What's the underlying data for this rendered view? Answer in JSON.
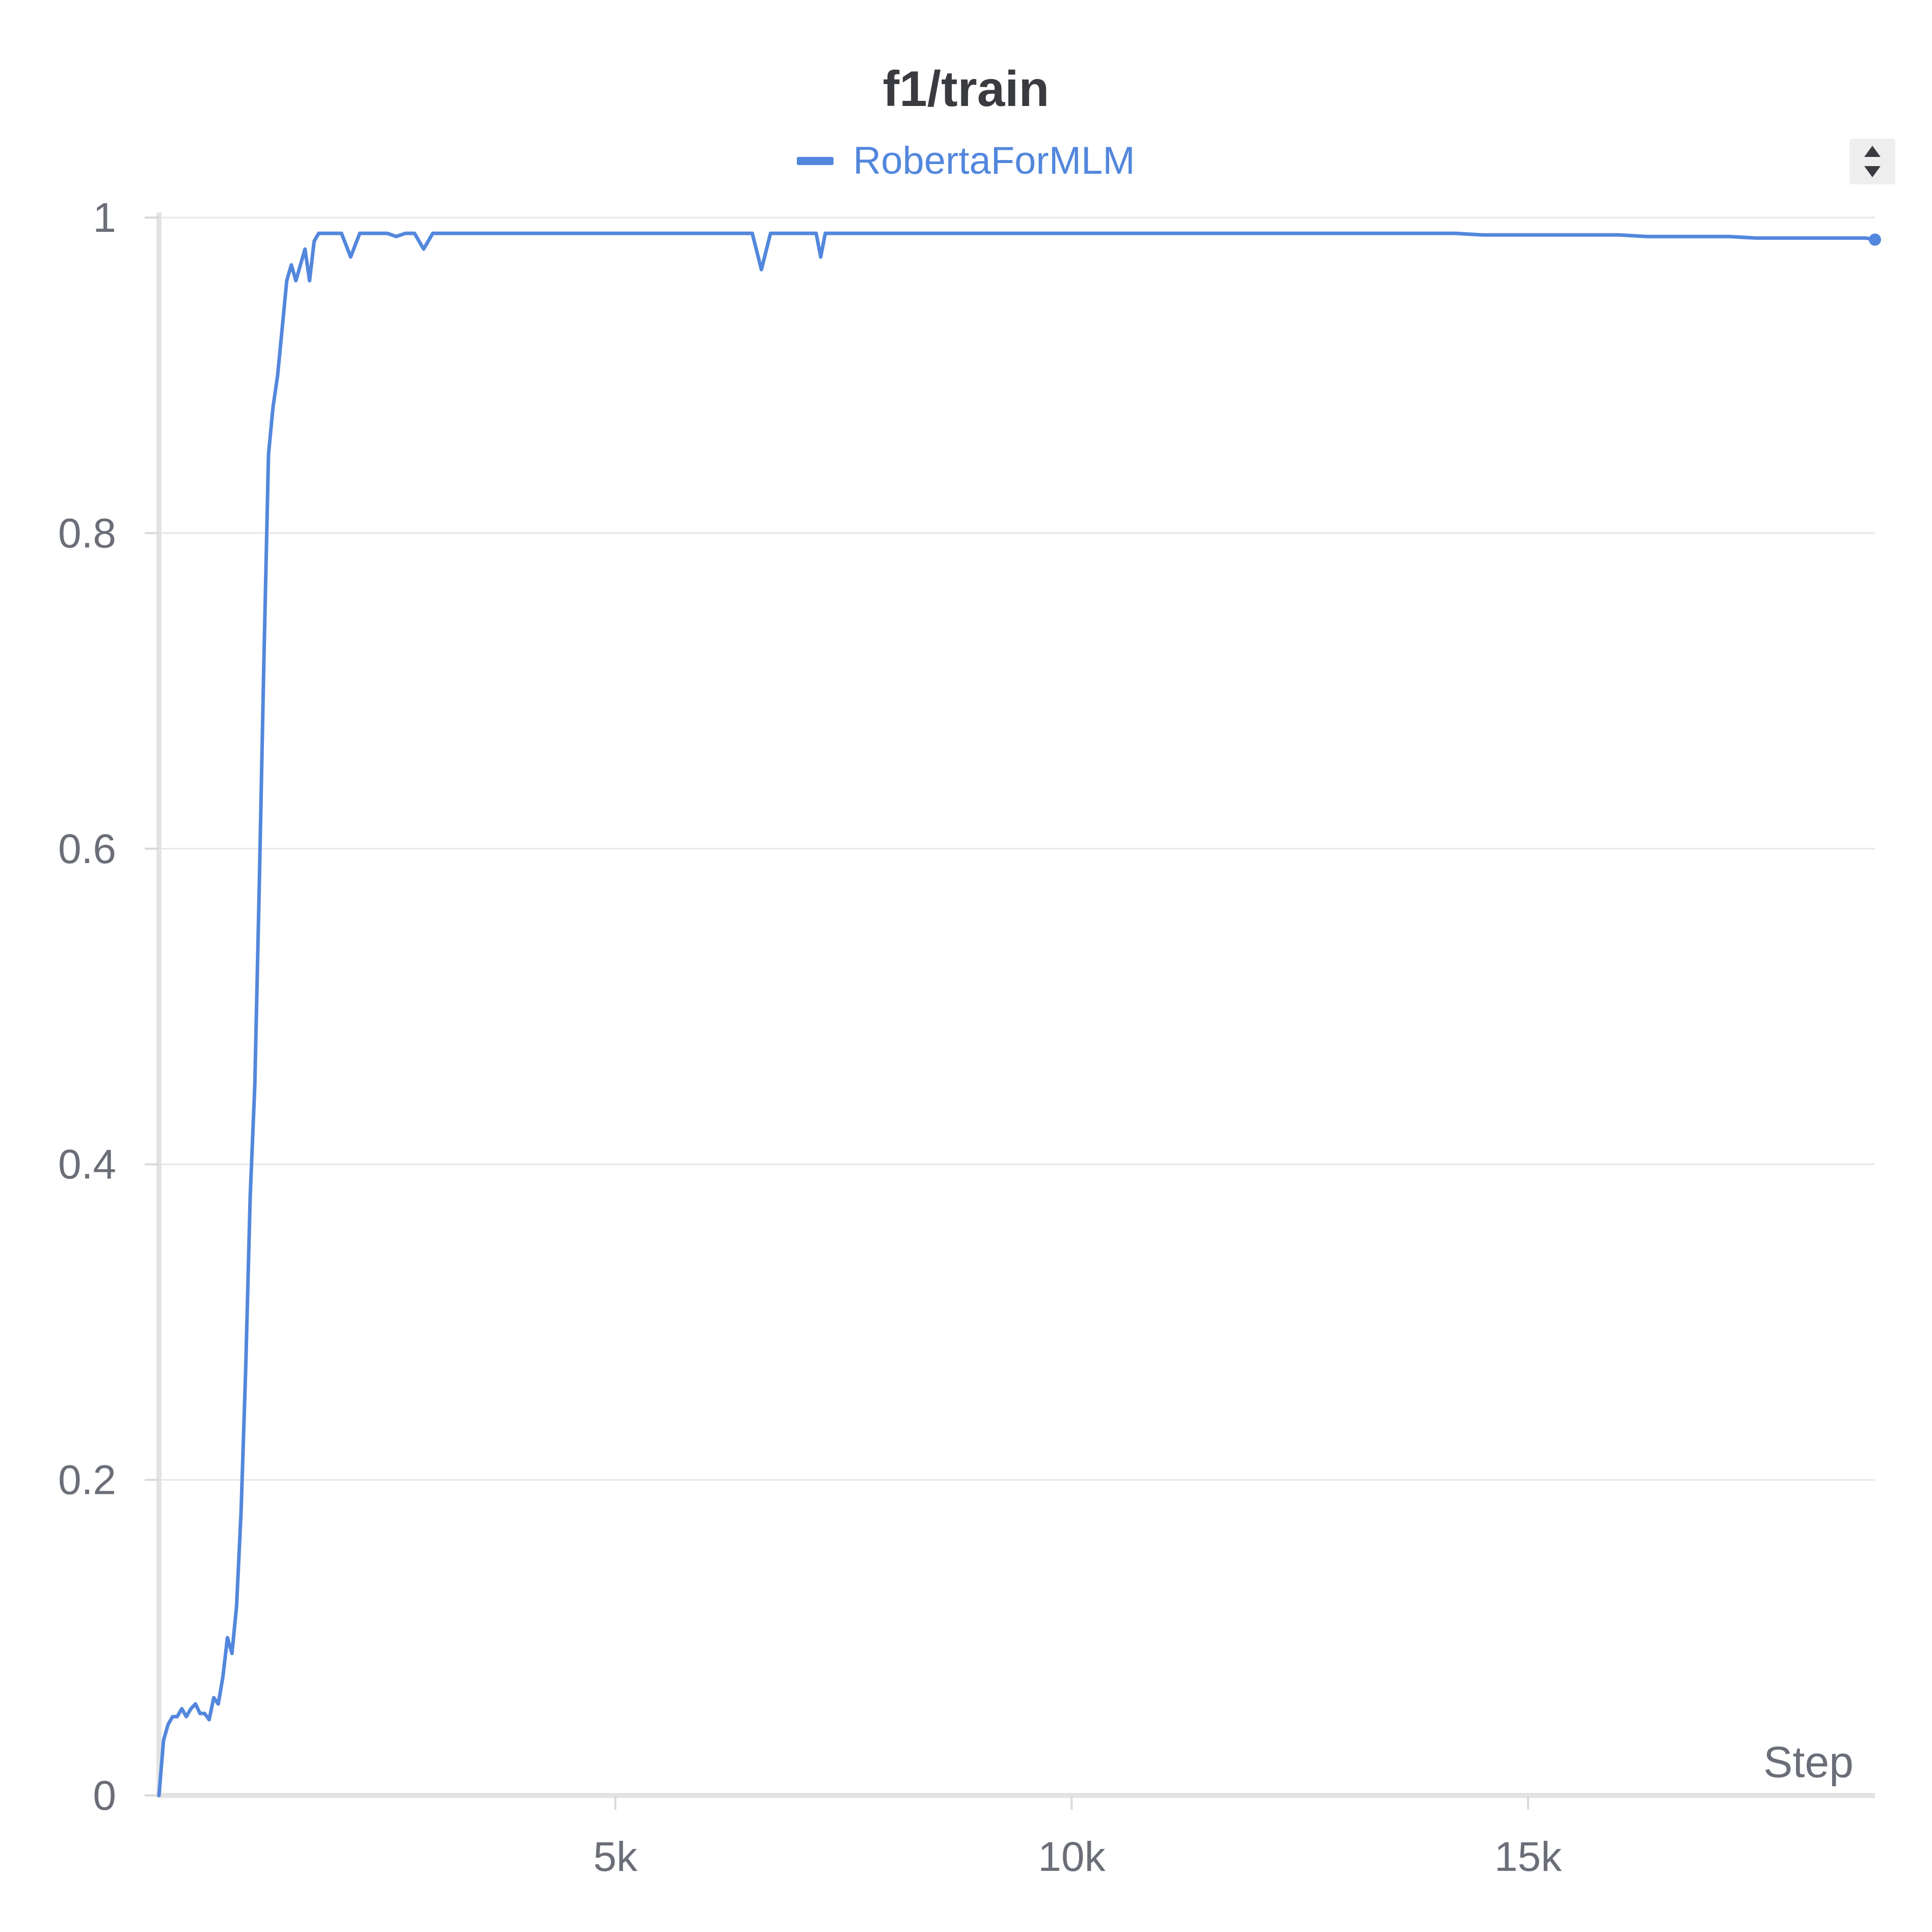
{
  "chart_data": {
    "type": "line",
    "title": "f1/train",
    "xlabel": "Step",
    "ylabel": "",
    "xlim": [
      0,
      18800
    ],
    "ylim": [
      0,
      1
    ],
    "x_ticks": [
      5000,
      10000,
      15000
    ],
    "x_tick_labels": [
      "5k",
      "10k",
      "15k"
    ],
    "y_ticks": [
      0,
      0.2,
      0.4,
      0.6,
      0.8,
      1
    ],
    "y_tick_labels": [
      "0",
      "0.2",
      "0.4",
      "0.6",
      "0.8",
      "1"
    ],
    "grid": true,
    "legend_position": "top-center",
    "series": [
      {
        "name": "RobertaForMLM",
        "color": "#5387dd",
        "x": [
          0,
          50,
          100,
          150,
          200,
          250,
          300,
          350,
          400,
          450,
          500,
          550,
          600,
          650,
          700,
          750,
          800,
          850,
          900,
          950,
          1000,
          1050,
          1100,
          1150,
          1200,
          1250,
          1300,
          1350,
          1400,
          1450,
          1500,
          1550,
          1600,
          1650,
          1700,
          1750,
          1800,
          1850,
          1900,
          1950,
          2000,
          2100,
          2200,
          2300,
          2400,
          2500,
          2600,
          2700,
          2800,
          2900,
          3000,
          3200,
          3500,
          3800,
          4100,
          4400,
          4700,
          5000,
          5300,
          5600,
          5900,
          6200,
          6500,
          6600,
          6700,
          6800,
          7000,
          7200,
          7250,
          7300,
          7600,
          7900,
          8200,
          8500,
          8800,
          9100,
          9400,
          9700,
          10000,
          10300,
          10600,
          10900,
          11200,
          11500,
          11800,
          12100,
          12400,
          12700,
          13000,
          13300,
          13600,
          13900,
          14200,
          14500,
          14800,
          15100,
          15400,
          15700,
          16000,
          16300,
          16600,
          16900,
          17200,
          17500,
          17800,
          18100,
          18400,
          18700,
          18800
        ],
        "y": [
          0.0,
          0.035,
          0.045,
          0.05,
          0.05,
          0.055,
          0.05,
          0.055,
          0.058,
          0.052,
          0.052,
          0.048,
          0.062,
          0.058,
          0.075,
          0.1,
          0.09,
          0.12,
          0.18,
          0.27,
          0.38,
          0.45,
          0.58,
          0.72,
          0.85,
          0.88,
          0.9,
          0.93,
          0.96,
          0.97,
          0.96,
          0.97,
          0.98,
          0.96,
          0.985,
          0.99,
          0.99,
          0.99,
          0.99,
          0.99,
          0.99,
          0.975,
          0.99,
          0.99,
          0.99,
          0.99,
          0.988,
          0.99,
          0.99,
          0.98,
          0.99,
          0.99,
          0.99,
          0.99,
          0.99,
          0.99,
          0.99,
          0.99,
          0.99,
          0.99,
          0.99,
          0.99,
          0.99,
          0.967,
          0.99,
          0.99,
          0.99,
          0.99,
          0.975,
          0.99,
          0.99,
          0.99,
          0.99,
          0.99,
          0.99,
          0.99,
          0.99,
          0.99,
          0.99,
          0.99,
          0.99,
          0.99,
          0.99,
          0.99,
          0.99,
          0.99,
          0.99,
          0.99,
          0.99,
          0.99,
          0.99,
          0.99,
          0.99,
          0.989,
          0.989,
          0.989,
          0.989,
          0.989,
          0.989,
          0.988,
          0.988,
          0.988,
          0.988,
          0.987,
          0.987,
          0.987,
          0.987,
          0.987,
          0.986
        ]
      }
    ]
  }
}
